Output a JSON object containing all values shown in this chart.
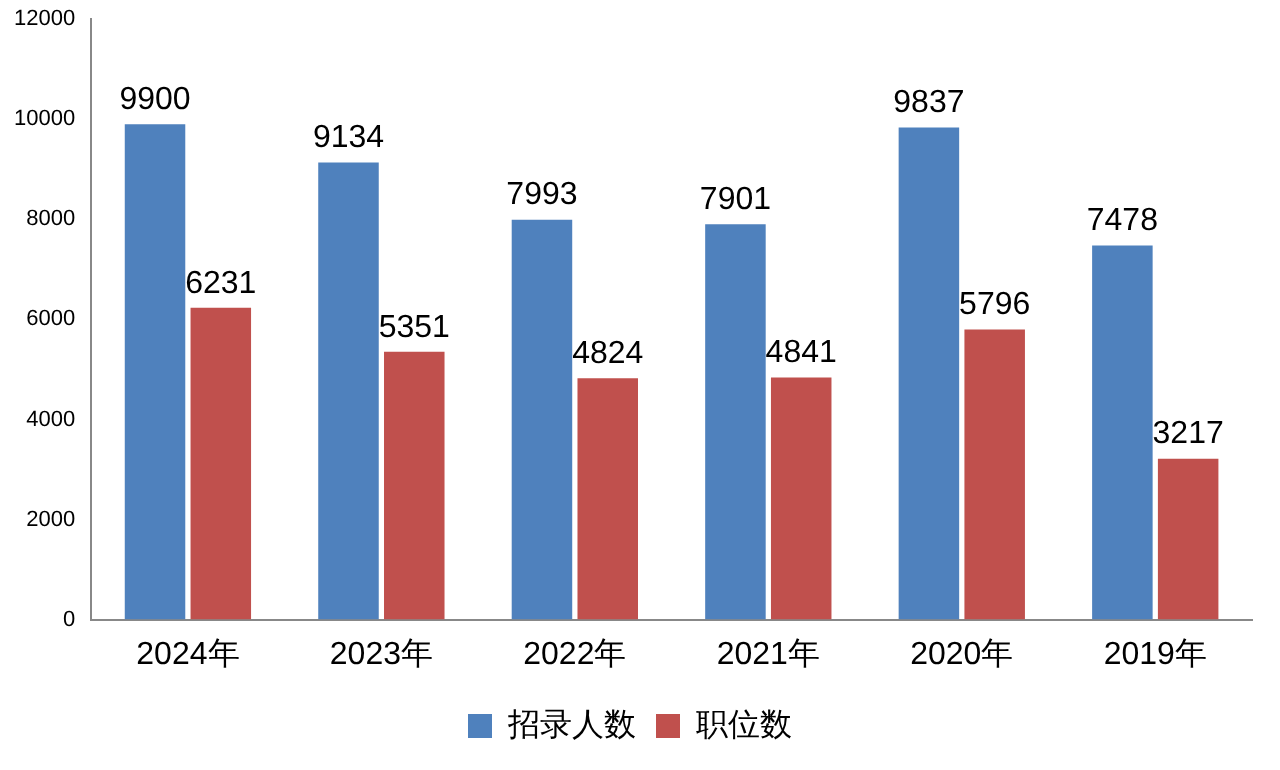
{
  "chart_data": {
    "type": "bar",
    "categories": [
      "2024年",
      "2023年",
      "2022年",
      "2021年",
      "2020年",
      "2019年"
    ],
    "series": [
      {
        "name": "招录人数",
        "color": "#4f81bd",
        "values": [
          9900,
          9134,
          7993,
          7901,
          9837,
          7478
        ]
      },
      {
        "name": "职位数",
        "color": "#c0504d",
        "values": [
          6231,
          5351,
          4824,
          4841,
          5796,
          3217
        ]
      }
    ],
    "ylim": [
      0,
      12000
    ],
    "yticks": [
      0,
      2000,
      4000,
      6000,
      8000,
      10000,
      12000
    ],
    "grid": false,
    "legend": "bottom",
    "data_labels": true
  }
}
